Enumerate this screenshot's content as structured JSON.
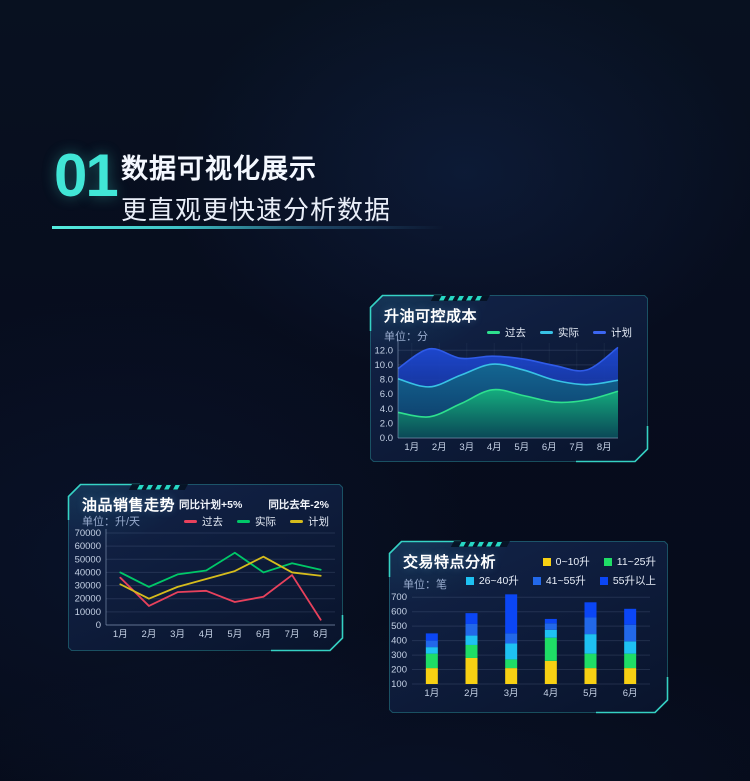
{
  "header": {
    "badge": "01",
    "title": "数据可视化展示",
    "subtitle": "更直观更快速分析数据"
  },
  "colors": {
    "accent_teal": "#38e0ce",
    "page_background": "#070d1e",
    "panel_background": "#0d1c3c"
  },
  "chart_data": [
    {
      "type": "area",
      "title": "升油可控成本",
      "unit_label": "单位：分",
      "categories": [
        "1月",
        "2月",
        "3月",
        "4月",
        "5月",
        "6月",
        "7月",
        "8月"
      ],
      "ylim": [
        0,
        13
      ],
      "yticks": [
        0,
        2,
        4,
        6,
        8,
        10,
        12
      ],
      "ytick_decimals": 1,
      "grid": true,
      "legend_position": "top-right",
      "legend": {
        "marker": "line",
        "rows": [
          [
            {
              "label": "过去",
              "color": "#2ee08e"
            },
            {
              "label": "实际",
              "color": "#38c2e5"
            },
            {
              "label": "计划",
              "color": "#3c66f0"
            }
          ]
        ]
      },
      "series": [
        {
          "name": "计划",
          "color": "#2f5be8",
          "fill_top": "#1e49d6",
          "fill_bottom": "#0d2470",
          "values": [
            9.5,
            12.2,
            10.9,
            11.2,
            10.8,
            9.9,
            9.3,
            12.4
          ]
        },
        {
          "name": "实际",
          "color": "#38c2e5",
          "fill_top": "#13688f",
          "fill_bottom": "#0c3a62",
          "values": [
            8.1,
            7.0,
            8.6,
            10.1,
            9.3,
            7.9,
            7.3,
            7.9
          ]
        },
        {
          "name": "过去",
          "color": "#2ee08e",
          "fill_top": "#15b27e",
          "fill_bottom": "#0a4b55",
          "values": [
            3.5,
            2.9,
            4.7,
            6.6,
            5.8,
            4.9,
            5.2,
            6.4
          ]
        }
      ]
    },
    {
      "type": "line",
      "title": "油品销售走势",
      "unit_label": "单位：升/天",
      "annotations": [
        "同比计划+5%",
        "同比去年-2%"
      ],
      "categories": [
        "1月",
        "2月",
        "3月",
        "4月",
        "5月",
        "6月",
        "7月",
        "8月"
      ],
      "ylim": [
        0,
        70000
      ],
      "yticks": [
        0,
        10000,
        20000,
        30000,
        40000,
        50000,
        60000,
        70000
      ],
      "ytick_decimals": 0,
      "grid": true,
      "legend_position": "top-right",
      "legend": {
        "marker": "line",
        "rows": [
          [
            {
              "label": "过去",
              "color": "#e8415c"
            },
            {
              "label": "实际",
              "color": "#00c868"
            },
            {
              "label": "计划",
              "color": "#d6bc1c"
            }
          ]
        ]
      },
      "series": [
        {
          "name": "过去",
          "color": "#e8415c",
          "values": [
            36000,
            14500,
            25000,
            26000,
            17500,
            21500,
            38000,
            4000
          ]
        },
        {
          "name": "实际",
          "color": "#00c868",
          "values": [
            40000,
            29000,
            38500,
            41500,
            55000,
            40000,
            47000,
            42000
          ]
        },
        {
          "name": "计划",
          "color": "#d6bc1c",
          "values": [
            31000,
            20000,
            29000,
            35000,
            41000,
            52000,
            40000,
            37500
          ]
        }
      ]
    },
    {
      "type": "stacked-bar",
      "title": "交易特点分析",
      "unit_label": "单位：笔",
      "categories": [
        "1月",
        "2月",
        "3月",
        "4月",
        "5月",
        "6月"
      ],
      "y_base": 100,
      "ylim": [
        100,
        750
      ],
      "yticks": [
        100,
        200,
        300,
        400,
        500,
        600,
        700
      ],
      "ytick_decimals": 0,
      "grid": true,
      "legend_position": "top-right",
      "legend": {
        "marker": "square",
        "rows": [
          [
            {
              "label": "0~10升",
              "color": "#f7d013"
            },
            {
              "label": "11~25升",
              "color": "#1fdd66"
            }
          ],
          [
            {
              "label": "26~40升",
              "color": "#1ec1f2"
            },
            {
              "label": "41~55升",
              "color": "#2268e9"
            },
            {
              "label": "55升以上",
              "color": "#0b46f5"
            }
          ]
        ]
      },
      "series": [
        {
          "name": "0~10升",
          "color": "#f7d013",
          "values": [
            110,
            180,
            110,
            160,
            110,
            110
          ]
        },
        {
          "name": "11~25升",
          "color": "#1fdd66",
          "values": [
            100,
            90,
            60,
            160,
            100,
            100
          ]
        },
        {
          "name": "26~40升",
          "color": "#1ec1f2",
          "values": [
            45,
            65,
            110,
            55,
            135,
            85
          ]
        },
        {
          "name": "41~55升",
          "color": "#2268e9",
          "values": [
            45,
            80,
            70,
            45,
            115,
            115
          ]
        },
        {
          "name": "55升以上",
          "color": "#0b46f5",
          "values": [
            50,
            75,
            270,
            30,
            105,
            110
          ]
        }
      ]
    }
  ]
}
